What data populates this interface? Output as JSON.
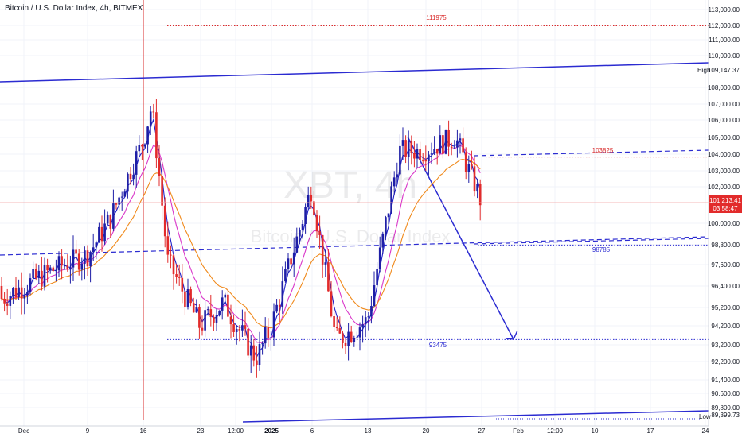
{
  "chart_title": "Bitcoin / U.S. Dollar Index, 4h, BITMEX",
  "watermark": {
    "symbol": "XBT, 4h",
    "name": "Bitcoin / U.S. Dollar Index"
  },
  "colors": {
    "up": "#1e1ea6",
    "down": "#e22b2b",
    "ema_fast": "#2020c8",
    "ema_mid": "#d936c9",
    "ema_slow": "#f08a1c",
    "channel": "#2b2bd1",
    "level": "#d92c2c"
  },
  "chart_data": {
    "type": "candlestick",
    "symbol": "XBT",
    "interval": "4h",
    "exchange": "BITMEX",
    "last_price": "101,213.41",
    "countdown": "03:58:47",
    "y_axis": {
      "ticks": [
        "113,000.00",
        "112,000.00",
        "111,000.00",
        "110,000.00",
        "109,147.37",
        "108,000.00",
        "107,000.00",
        "106,000.00",
        "105,000.00",
        "104,000.00",
        "103,000.00",
        "102,000.00",
        "100,000.00",
        "98,800.00",
        "97,600.00",
        "96,400.00",
        "95,200.00",
        "94,200.00",
        "93,200.00",
        "92,200.00",
        "91,400.00",
        "90,600.00",
        "89,800.00",
        "89,399.73"
      ],
      "range": [
        89000,
        113500
      ]
    },
    "x_axis": {
      "ticks": [
        "Dec",
        "9",
        "16",
        "23",
        "12:00",
        "2025",
        "6",
        "13",
        "20",
        "27",
        "Feb",
        "12:00",
        "10",
        "17",
        "24"
      ]
    },
    "high": {
      "label": "High",
      "value": "109,147.37"
    },
    "low": {
      "label": "Low",
      "value": "89,399.73"
    },
    "levels": [
      {
        "label": "111975",
        "value": 111975
      },
      {
        "label": "103825",
        "value": 103825
      },
      {
        "label": "98785",
        "value": 98785
      },
      {
        "label": "93475",
        "value": 93475
      }
    ],
    "candles_close_approx": [
      {
        "date": "Dec 1",
        "close": 96400
      },
      {
        "date": "Dec 5",
        "close": 97400
      },
      {
        "date": "Dec 9",
        "close": 98200
      },
      {
        "date": "Dec 12",
        "close": 100400
      },
      {
        "date": "Dec 16",
        "close": 104900
      },
      {
        "date": "Dec 17",
        "close": 106900
      },
      {
        "date": "Dec 19",
        "close": 97800
      },
      {
        "date": "Dec 23",
        "close": 94200
      },
      {
        "date": "Dec 26",
        "close": 95500
      },
      {
        "date": "Dec 30",
        "close": 92400
      },
      {
        "date": "Jan 1",
        "close": 94200
      },
      {
        "date": "Jan 6",
        "close": 102000
      },
      {
        "date": "Jan 9",
        "close": 93400
      },
      {
        "date": "Jan 13",
        "close": 94500
      },
      {
        "date": "Jan 17",
        "close": 104200
      },
      {
        "date": "Jan 20",
        "close": 104200
      },
      {
        "date": "Jan 24",
        "close": 105000
      },
      {
        "date": "Jan 27",
        "close": 101213
      }
    ]
  }
}
